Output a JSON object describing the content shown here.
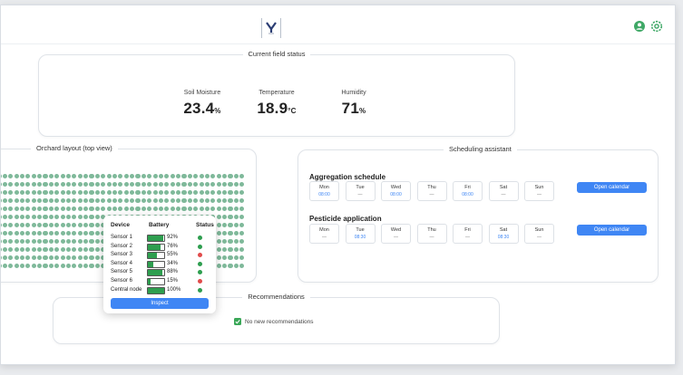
{
  "colors": {
    "accent": "#3f86f4",
    "ok": "#2e9e4f",
    "alert": "#e14b4b",
    "tree": "#7fb99a"
  },
  "header": {
    "user_icon": "user-circle-icon",
    "settings_icon": "gear-icon"
  },
  "field_status": {
    "title": "Current field status",
    "metrics": [
      {
        "label": "Soil Moisture",
        "value": "23.4",
        "unit": "%"
      },
      {
        "label": "Temperature",
        "value": "18.9",
        "unit": "°C"
      },
      {
        "label": "Humidity",
        "value": "71",
        "unit": "%"
      }
    ]
  },
  "orchard": {
    "title": "Orchard layout (top view)",
    "rows": 12,
    "trees_per_row": 44
  },
  "device_popup": {
    "headers": {
      "device": "Device",
      "battery": "Battery",
      "status": "Status"
    },
    "devices": [
      {
        "name": "Sensor 1",
        "battery": "92%",
        "level": 0.92,
        "status": "ok"
      },
      {
        "name": "Sensor 2",
        "battery": "76%",
        "level": 0.76,
        "status": "ok"
      },
      {
        "name": "Sensor 3",
        "battery": "55%",
        "level": 0.55,
        "status": "alert"
      },
      {
        "name": "Sensor 4",
        "battery": "34%",
        "level": 0.34,
        "status": "ok"
      },
      {
        "name": "Sensor 5",
        "battery": "88%",
        "level": 0.88,
        "status": "ok"
      },
      {
        "name": "Sensor 6",
        "battery": "15%",
        "level": 0.15,
        "status": "alert"
      },
      {
        "name": "Central node",
        "battery": "100%",
        "level": 1.0,
        "status": "ok"
      }
    ],
    "inspect_label": "Inspect"
  },
  "scheduling": {
    "title": "Scheduling assistant",
    "schedules": [
      {
        "title": "Aggregation schedule",
        "button_label": "Open calendar",
        "days": [
          {
            "day": "Mon",
            "time": "08:00"
          },
          {
            "day": "Tue",
            "time": "—"
          },
          {
            "day": "Wed",
            "time": "08:00"
          },
          {
            "day": "Thu",
            "time": "—"
          },
          {
            "day": "Fri",
            "time": "08:00"
          },
          {
            "day": "Sat",
            "time": "—"
          },
          {
            "day": "Sun",
            "time": "—"
          }
        ]
      },
      {
        "title": "Pesticide application",
        "button_label": "Open calendar",
        "days": [
          {
            "day": "Mon",
            "time": "—"
          },
          {
            "day": "Tue",
            "time": "08:30"
          },
          {
            "day": "Wed",
            "time": "—"
          },
          {
            "day": "Thu",
            "time": "—"
          },
          {
            "day": "Fri",
            "time": "—"
          },
          {
            "day": "Sat",
            "time": "08:30"
          },
          {
            "day": "Sun",
            "time": "—"
          }
        ]
      }
    ]
  },
  "recommendations": {
    "title": "Recommendations",
    "message": "No new recommendations"
  }
}
